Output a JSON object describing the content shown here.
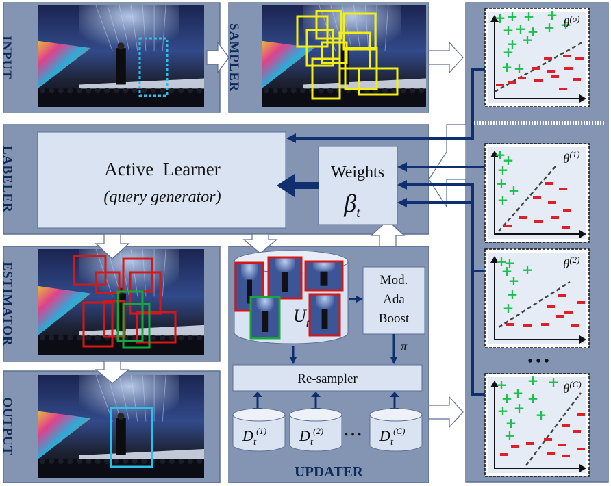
{
  "stages": {
    "input": "INPUT",
    "sampler": "SAMPLER",
    "labeler": "LABELER",
    "estimator": "ESTIMATOR",
    "output": "OUTPUT",
    "updater": "UPDATER"
  },
  "active_learner": {
    "title": "Active  Learner",
    "subtitle": "(query generator)"
  },
  "weights": {
    "label": "Weights",
    "symbol": "β",
    "sub": "t"
  },
  "unlabeled": {
    "symbol": "U",
    "sub": "t"
  },
  "boost": {
    "line1": "Mod.",
    "line2": "Ada",
    "line3": "Boost"
  },
  "pi": "π",
  "resampler": "Re-sampler",
  "datasets": [
    {
      "symbol": "D",
      "sub": "t",
      "sup": "(1)"
    },
    {
      "symbol": "D",
      "sub": "t",
      "sup": "(2)"
    },
    {
      "symbol": "D",
      "sub": "t",
      "sup": "(C)"
    }
  ],
  "dots": "• • •",
  "vdots": "• • •",
  "classifiers": [
    {
      "theta": "θ",
      "sup": "(o)"
    },
    {
      "theta": "θ",
      "sup": "(1)"
    },
    {
      "theta": "θ",
      "sup": "(2)"
    },
    {
      "theta": "θ",
      "sup": "(C)"
    }
  ],
  "colors": {
    "panel": "#8494b3",
    "panel_border": "#5d6f93",
    "light_box": "#d9e3f1",
    "dark_arrow": "#0f2f6e",
    "plus": "#1fbf4f",
    "minus": "#e01e2a",
    "yellow_box": "#f4ef12",
    "red_box": "#d61717",
    "green_box": "#18a83a",
    "cyan_box": "#2cc0e8"
  }
}
